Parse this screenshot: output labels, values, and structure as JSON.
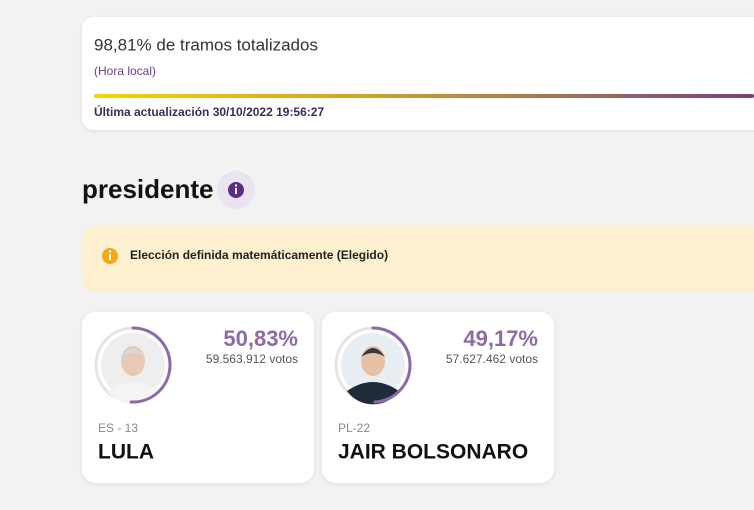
{
  "header": {
    "title": "98,81% de tramos totalizados",
    "note": "(Hora local)",
    "updated": "Última actualización 30/10/2022 19:56:27"
  },
  "section": {
    "title": "presidente"
  },
  "alert": {
    "text": "Elección definida matemáticamente (Elegido)"
  },
  "candidates": [
    {
      "percent": 50.83,
      "percent_label": "50,83%",
      "votes": "59.563.912 votos",
      "party": "ES - 13",
      "name": "LULA"
    },
    {
      "percent": 49.17,
      "percent_label": "49,17%",
      "votes": "57.627.462 votos",
      "party": "PL-22",
      "name": "JAIR BOLSONARO"
    }
  ]
}
